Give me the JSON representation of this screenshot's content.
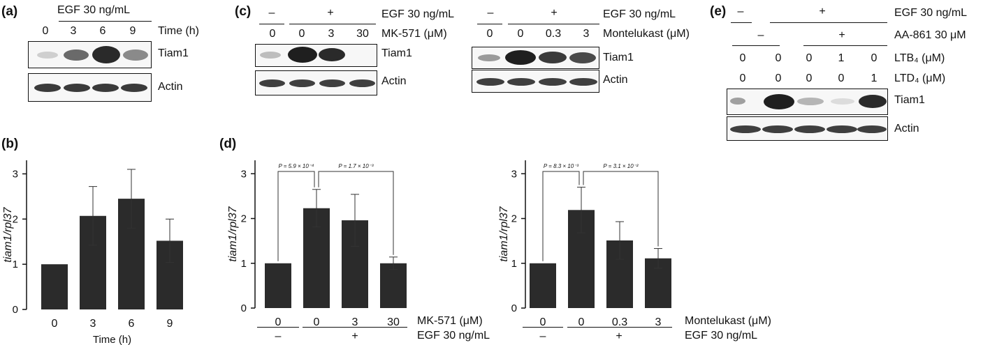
{
  "panels": {
    "a": {
      "letter": "(a)",
      "egf_label": "EGF 30 ng/mL",
      "time_label": "Time (h)",
      "lanes": [
        "0",
        "3",
        "6",
        "9"
      ],
      "row1": "Tiam1",
      "row2": "Actin"
    },
    "b": {
      "letter": "(b)"
    },
    "c": {
      "letter": "(c)",
      "left": {
        "egf_minus": "–",
        "egf_plus": "+",
        "egf_label": "EGF 30 ng/mL",
        "drug_label": "MK-571 (μM)",
        "lanes": [
          "0",
          "0",
          "3",
          "30"
        ],
        "row1": "Tiam1",
        "row2": "Actin"
      },
      "right": {
        "egf_minus": "–",
        "egf_plus": "+",
        "egf_label": "EGF 30 ng/mL",
        "drug_label": "Montelukast (μM)",
        "lanes": [
          "0",
          "0",
          "0.3",
          "3"
        ],
        "row1": "Tiam1",
        "row2": "Actin"
      }
    },
    "d": {
      "letter": "(d)",
      "left": {
        "p1": "P = 5.9 × 10⁻⁴",
        "p2": "P = 1.7 × 10⁻³",
        "drug_label": "MK-571 (μM)",
        "egf_label": "EGF 30 ng/mL",
        "egf_minus": "–",
        "egf_plus": "+"
      },
      "right": {
        "p1": "P = 8.3 × 10⁻³",
        "p2": "P = 3.1 × 10⁻²",
        "drug_label": "Montelukast (μM)",
        "egf_label": "EGF 30 ng/mL",
        "egf_minus": "–",
        "egf_plus": "+"
      }
    },
    "e": {
      "letter": "(e)",
      "egf_minus": "–",
      "egf_plus": "+",
      "egf_label": "EGF 30 ng/mL",
      "aa_minus": "–",
      "aa_plus": "+",
      "aa_label": "AA-861 30 μM",
      "ltb4_label": "LTB₄ (μM)",
      "ltb4_vals": [
        "0",
        "0",
        "0",
        "1",
        "0"
      ],
      "ltd4_label": "LTD₄ (μM)",
      "ltd4_vals": [
        "0",
        "0",
        "0",
        "0",
        "1"
      ],
      "row1": "Tiam1",
      "row2": "Actin"
    }
  },
  "chart_data": [
    {
      "type": "bar",
      "panel": "b",
      "categories": [
        "0",
        "3",
        "6",
        "9"
      ],
      "values": [
        1.0,
        2.07,
        2.45,
        1.52
      ],
      "errors": [
        0.0,
        0.65,
        0.65,
        0.48
      ],
      "xlabel": "Time (h)",
      "ylabel": "tiam1/rpl37",
      "ylim": [
        0,
        3.3
      ],
      "yticks": [
        "0",
        "1",
        "2",
        "3"
      ],
      "bar_color": "#2b2b2b"
    },
    {
      "type": "bar",
      "panel": "d-left",
      "categories": [
        "0",
        "0",
        "3",
        "30"
      ],
      "values": [
        1.0,
        2.23,
        1.96,
        1.0
      ],
      "errors": [
        0.0,
        0.42,
        0.58,
        0.14
      ],
      "ylabel": "tiam1/rpl37",
      "ylim": [
        0,
        3.3
      ],
      "yticks": [
        "0",
        "1",
        "2",
        "3"
      ],
      "bar_color": "#2b2b2b"
    },
    {
      "type": "bar",
      "panel": "d-right",
      "categories": [
        "0",
        "0",
        "0.3",
        "3"
      ],
      "values": [
        1.0,
        2.19,
        1.51,
        1.11
      ],
      "errors": [
        0.0,
        0.51,
        0.42,
        0.22
      ],
      "ylabel": "tiam1/rpl37",
      "ylim": [
        0,
        3.3
      ],
      "yticks": [
        "0",
        "1",
        "2",
        "3"
      ],
      "bar_color": "#2b2b2b"
    }
  ]
}
